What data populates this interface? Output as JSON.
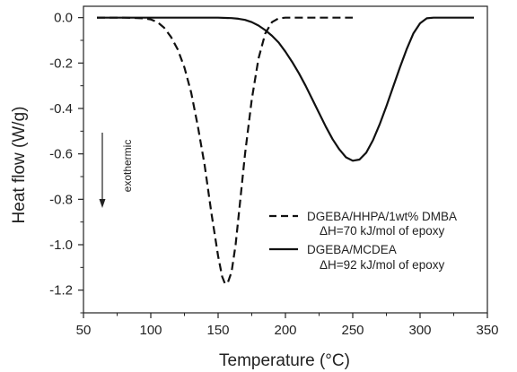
{
  "chart_data": {
    "type": "line",
    "title": "",
    "xlabel": "Temperature (°C)",
    "ylabel": "Heat flow (W/g)",
    "xlim": [
      50,
      350
    ],
    "ylim": [
      -1.3,
      0.05
    ],
    "xticks": [
      50,
      100,
      150,
      200,
      250,
      300,
      350
    ],
    "yticks": [
      0.0,
      -0.2,
      -0.4,
      -0.6,
      -0.8,
      -1.0,
      -1.2
    ],
    "ytick_labels": [
      "0.0",
      "-0.2",
      "-0.4",
      "-0.6",
      "-0.8",
      "-1.0",
      "-1.2"
    ],
    "grid": false,
    "legend_position": "lower-right",
    "annotation": {
      "text": "exothermic",
      "arrow": "down"
    },
    "series": [
      {
        "name": "DGEBA/HHPA/1wt% DMBA",
        "subtitle": "ΔH=70 kJ/mol of epoxy",
        "style": "dashed",
        "color": "#111111",
        "x": [
          60,
          80,
          95,
          100,
          105,
          110,
          115,
          120,
          125,
          130,
          135,
          140,
          145,
          150,
          153,
          155,
          157,
          160,
          163,
          166,
          170,
          175,
          180,
          185,
          190,
          195,
          200,
          205,
          210,
          220,
          230,
          240,
          250
        ],
        "y": [
          0.0,
          0.0,
          -0.003,
          -0.008,
          -0.02,
          -0.045,
          -0.085,
          -0.14,
          -0.22,
          -0.33,
          -0.48,
          -0.65,
          -0.86,
          -1.05,
          -1.14,
          -1.17,
          -1.17,
          -1.12,
          -1.0,
          -0.83,
          -0.6,
          -0.36,
          -0.18,
          -0.07,
          -0.02,
          -0.003,
          0.0,
          0.0,
          0.0,
          0.0,
          0.0,
          0.0,
          0.0
        ]
      },
      {
        "name": "DGEBA/MCDEA",
        "subtitle": "ΔH=92 kJ/mol of epoxy",
        "style": "solid",
        "color": "#111111",
        "x": [
          60,
          100,
          130,
          150,
          160,
          165,
          170,
          175,
          180,
          185,
          190,
          195,
          200,
          205,
          210,
          215,
          220,
          225,
          230,
          235,
          240,
          245,
          250,
          255,
          260,
          265,
          270,
          275,
          280,
          285,
          290,
          295,
          300,
          305,
          310,
          320,
          330,
          340
        ],
        "y": [
          0.0,
          0.0,
          0.0,
          0.0,
          -0.002,
          -0.005,
          -0.01,
          -0.02,
          -0.035,
          -0.055,
          -0.08,
          -0.11,
          -0.15,
          -0.195,
          -0.245,
          -0.3,
          -0.36,
          -0.42,
          -0.48,
          -0.535,
          -0.58,
          -0.615,
          -0.63,
          -0.625,
          -0.595,
          -0.54,
          -0.47,
          -0.39,
          -0.305,
          -0.22,
          -0.14,
          -0.07,
          -0.025,
          -0.003,
          0.0,
          0.0,
          0.0,
          0.0
        ]
      }
    ]
  }
}
